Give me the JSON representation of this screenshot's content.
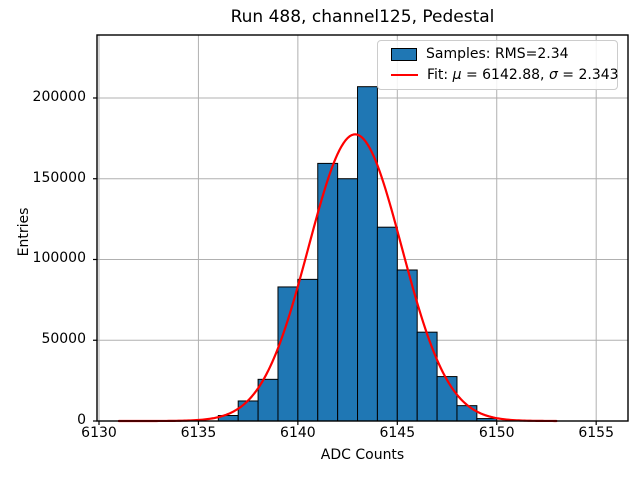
{
  "title": "Run 488, channel125, Pedestal",
  "xlabel": "ADC Counts",
  "ylabel": "Entries",
  "legend": {
    "samples_label": "Samples: RMS=2.34",
    "fit_parts": [
      {
        "text": "Fit: ",
        "italic": false
      },
      {
        "text": "μ",
        "italic": true
      },
      {
        "text": " = 6142.88, ",
        "italic": false
      },
      {
        "text": "σ",
        "italic": true
      },
      {
        "text": " = 2.343",
        "italic": false
      }
    ]
  },
  "chart_data": {
    "type": "bar",
    "title": "Run 488, channel125, Pedestal",
    "xlabel": "ADC Counts",
    "ylabel": "Entries",
    "xlim": [
      6129.9,
      6156.6
    ],
    "ylim": [
      0,
      239000
    ],
    "xticks": [
      6130,
      6135,
      6140,
      6145,
      6150,
      6155
    ],
    "xtick_labels": [
      "6130",
      "6135",
      "6140",
      "6145",
      "6150",
      "6155"
    ],
    "yticks": [
      0,
      50000,
      100000,
      150000,
      200000
    ],
    "ytick_labels": [
      "0",
      "50000",
      "100000",
      "150000",
      "200000"
    ],
    "grid": true,
    "legend_position": "upper right",
    "bar_color": "#1f77b4",
    "bar_edge_color": "#000000",
    "grid_color": "#b0b0b0",
    "bin_edges": [
      6136,
      6137,
      6138,
      6139,
      6140,
      6141,
      6142,
      6143,
      6144,
      6145,
      6146,
      6147,
      6148,
      6149,
      6150
    ],
    "values": [
      3400,
      12400,
      25800,
      83000,
      87700,
      159500,
      150000,
      207000,
      120000,
      93500,
      55000,
      27500,
      9500,
      1500
    ],
    "fit": {
      "type": "gaussian",
      "mu": 6142.88,
      "sigma": 2.343,
      "amplitude": 177500,
      "x_range": [
        6131,
        6153
      ],
      "color": "#ff0000"
    }
  }
}
